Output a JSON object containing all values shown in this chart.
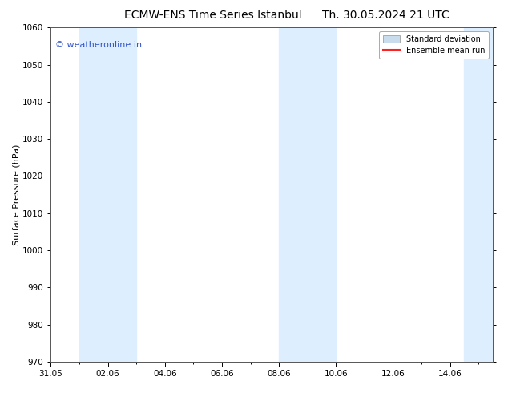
{
  "title_left": "ECMW-ENS Time Series Istanbul",
  "title_right": "Th. 30.05.2024 21 UTC",
  "ylabel": "Surface Pressure (hPa)",
  "ylim": [
    970,
    1060
  ],
  "yticks": [
    970,
    980,
    990,
    1000,
    1010,
    1020,
    1030,
    1040,
    1050,
    1060
  ],
  "xtick_labels": [
    "31.05",
    "02.06",
    "04.06",
    "06.06",
    "08.06",
    "10.06",
    "12.06",
    "14.06"
  ],
  "xtick_positions": [
    0,
    2,
    4,
    6,
    8,
    10,
    12,
    14
  ],
  "xlim": [
    0,
    15.5
  ],
  "shaded_bands": [
    {
      "x_start": 1.0,
      "x_end": 3.0,
      "color": "#ddeeff"
    },
    {
      "x_start": 8.0,
      "x_end": 10.0,
      "color": "#ddeeff"
    },
    {
      "x_start": 14.5,
      "x_end": 15.5,
      "color": "#ddeeff"
    }
  ],
  "watermark_text": "© weatheronline.in",
  "watermark_color": "#3355cc",
  "legend_std_dev_color": "#c8dced",
  "legend_mean_color": "#ff2222",
  "background_color": "#ffffff",
  "title_fontsize": 10,
  "axis_label_fontsize": 8,
  "tick_fontsize": 7.5,
  "watermark_fontsize": 8
}
